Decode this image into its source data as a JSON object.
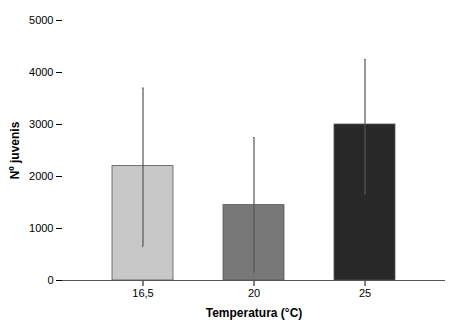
{
  "chart_data": {
    "type": "bar",
    "categories": [
      "16,5",
      "20",
      "25"
    ],
    "values": [
      2200,
      1450,
      3000
    ],
    "errors_lower": [
      1550,
      1300,
      1350
    ],
    "errors_upper": [
      1500,
      1300,
      1250
    ],
    "colors": [
      "#c8c8c8",
      "#787878",
      "#282828"
    ],
    "xlabel": "Temperatura (°C)",
    "ylabel": "Nº juvenis",
    "ylim": [
      0,
      5000
    ],
    "yticks": [
      0,
      1000,
      2000,
      3000,
      4000,
      5000
    ],
    "grid": false
  }
}
